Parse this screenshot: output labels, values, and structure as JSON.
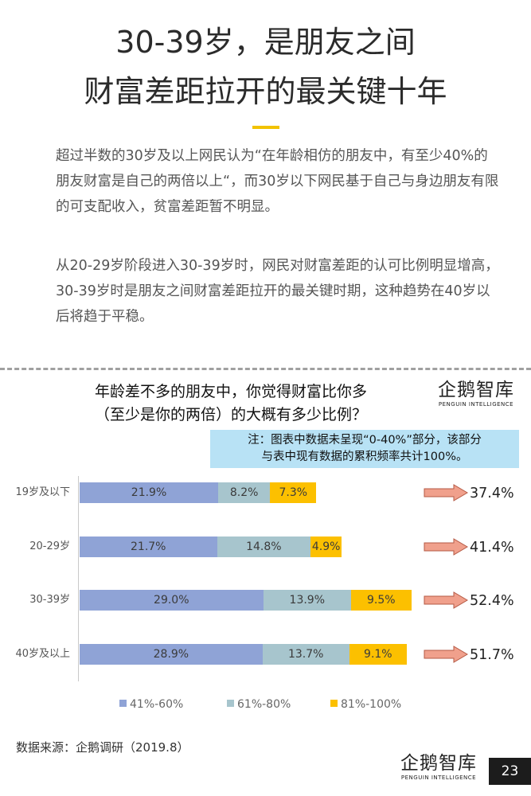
{
  "header": {
    "title_line1": "30-39岁，是朋友之间",
    "title_line2": "财富差距拉开的最关键十年"
  },
  "body": {
    "paragraph1": "超过半数的30岁及以上网民认为“在年龄相仿的朋友中，有至少40%的朋友财富是自己的两倍以上“，而30岁以下网民基于自己与身边朋友有限的可支配收入，贫富差距暂不明显。",
    "paragraph2": "从20-29岁阶段进入30-39岁时，网民对财富差距的认可比例明显增高，30-39岁时是朋友之间财富差距拉开的最关键时期，这种趋势在40岁以后将趋于平稳。"
  },
  "logo": {
    "main": "企鹅智库",
    "sub": "PENGUIN INTELLIGENCE"
  },
  "chart_data": {
    "type": "bar",
    "orientation": "horizontal",
    "stacked": true,
    "title_line1": "年龄差不多的朋友中，你觉得财富比你多",
    "title_line2": "（至少是你的两倍）的大概有多少比例？",
    "note_line1": "注：图表中数据未呈现“0-40%”部分，该部分",
    "note_line2": "与表中现有数据的累积频率共计100%。",
    "categories": [
      "19岁及以下",
      "20-29岁",
      "30-39岁",
      "40岁及以上"
    ],
    "series": [
      {
        "name": "41%-60%",
        "color": "#8fa3d6",
        "values": [
          21.9,
          21.7,
          29.0,
          28.9
        ],
        "labels": [
          "21.9%",
          "21.7%",
          "29.0%",
          "28.9%"
        ]
      },
      {
        "name": "61%-80%",
        "color": "#a7c5cd",
        "values": [
          8.2,
          14.8,
          13.9,
          13.7
        ],
        "labels": [
          "8.2%",
          "14.8%",
          "13.9%",
          "13.7%"
        ]
      },
      {
        "name": "81%-100%",
        "color": "#fcc000",
        "values": [
          7.3,
          4.9,
          9.5,
          9.1
        ],
        "labels": [
          "7.3%",
          "4.9%",
          "9.5%",
          "9.1%"
        ]
      }
    ],
    "totals": [
      "37.4%",
      "41.4%",
      "52.4%",
      "51.7%"
    ],
    "legend_position": "bottom",
    "arrow_color": "#f0a08c"
  },
  "footer": {
    "source": "数据来源：企鹅调研（2019.8）",
    "page_number": "23"
  }
}
